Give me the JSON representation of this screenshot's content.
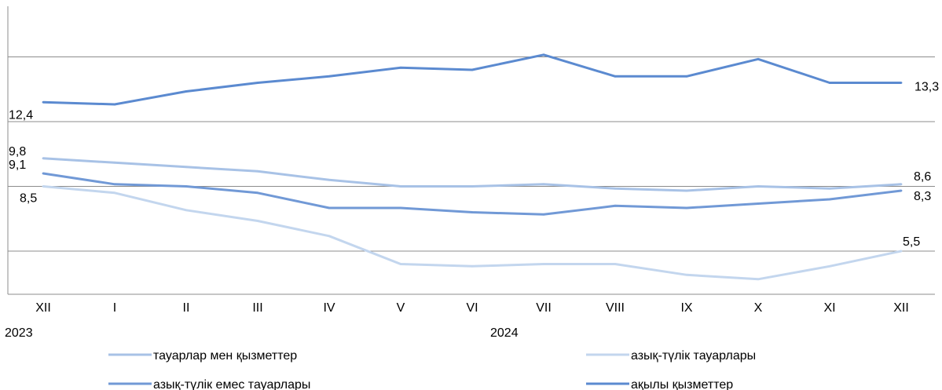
{
  "chart_data": {
    "type": "line",
    "title": "",
    "xlabel": "",
    "ylabel": "",
    "categories": [
      "XII",
      "I",
      "II",
      "III",
      "IV",
      "V",
      "VI",
      "VII",
      "VIII",
      "IX",
      "X",
      "XI",
      "XII"
    ],
    "year_labels": [
      "2023",
      "2024"
    ],
    "ylim": [
      3.5,
      15.5
    ],
    "grid": true,
    "legend_position": "bottom",
    "series": [
      {
        "name": "тауарлар мен қызметтер",
        "color": "#a8c2e6",
        "values": [
          9.8,
          9.6,
          9.4,
          9.2,
          8.8,
          8.5,
          8.5,
          8.6,
          8.4,
          8.3,
          8.5,
          8.4,
          8.6
        ],
        "start_label": "9,8",
        "end_label": "8,6"
      },
      {
        "name": "азық-түлік тауарлары",
        "color": "#c3d6ee",
        "values": [
          8.5,
          8.2,
          7.4,
          6.9,
          6.2,
          4.9,
          4.8,
          4.9,
          4.9,
          4.4,
          4.2,
          4.8,
          5.5
        ],
        "start_label": "8,5",
        "end_label": "5,5"
      },
      {
        "name": "азық-түлік емес тауарлары",
        "color": "#7199d6",
        "values": [
          9.1,
          8.6,
          8.5,
          8.2,
          7.5,
          7.5,
          7.3,
          7.2,
          7.6,
          7.5,
          7.7,
          7.9,
          8.3
        ],
        "start_label": "9,1",
        "end_label": "8,3"
      },
      {
        "name": "ақылы қызметтер",
        "color": "#5b8ad0",
        "values": [
          12.4,
          12.3,
          12.9,
          13.3,
          13.6,
          14.0,
          13.9,
          14.6,
          13.6,
          13.6,
          14.4,
          13.3,
          13.3
        ],
        "start_label": "12,4",
        "end_label": "13,3"
      }
    ]
  }
}
